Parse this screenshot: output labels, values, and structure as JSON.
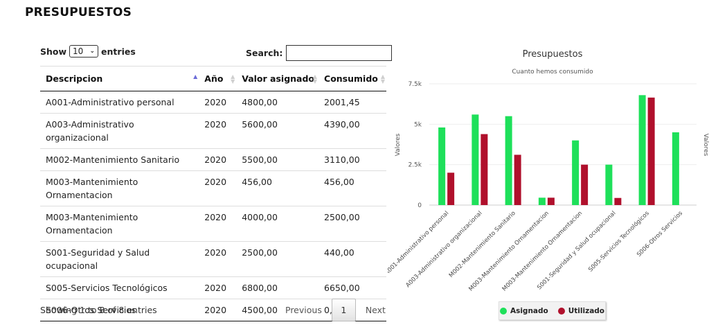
{
  "page": {
    "title": "PRESUPUESTOS"
  },
  "table": {
    "show_label": "Show",
    "length_value": "10",
    "entries_label": "entries",
    "search_label": "Search:",
    "search_value": "",
    "columns": [
      "Descripcion",
      "Año",
      "Valor asignado",
      "Consumido"
    ],
    "rows": [
      [
        "A001-Administrativo personal",
        "2020",
        "4800,00",
        "2001,45"
      ],
      [
        "A003-Administrativo organizacional",
        "2020",
        "5600,00",
        "4390,00"
      ],
      [
        "M002-Mantenimiento Sanitario",
        "2020",
        "5500,00",
        "3110,00"
      ],
      [
        "M003-Mantenimiento Ornamentacion",
        "2020",
        "456,00",
        "456,00"
      ],
      [
        "M003-Mantenimiento Ornamentacion",
        "2020",
        "4000,00",
        "2500,00"
      ],
      [
        "S001-Seguridad y Salud ocupacional",
        "2020",
        "2500,00",
        "440,00"
      ],
      [
        "S005-Servicios Tecnológicos",
        "2020",
        "6800,00",
        "6650,00"
      ],
      [
        "S006-Otros Servicios",
        "2020",
        "4500,00",
        "0,00"
      ]
    ],
    "info": "Showing 1 to 8 of 8 entries",
    "pager": {
      "previous": "Previous",
      "current": "1",
      "next": "Next"
    }
  },
  "colors": {
    "asignado": "#1ee05a",
    "utilizado": "#b0102c"
  },
  "chart_data": {
    "type": "bar",
    "title": "Presupuestos",
    "subtitle": "Cuanto hemos consumido",
    "ylabel": "Valores",
    "ylabel_right": "Valores",
    "ylim": [
      0,
      7500
    ],
    "yticks": [
      0,
      2500,
      5000,
      7500
    ],
    "ytick_labels": [
      "0",
      "2.5k",
      "5k",
      "7.5k"
    ],
    "grid": true,
    "legend_position": "bottom",
    "categories": [
      "A001-Administrativo personal",
      "A003-Administrativo organizacional",
      "M002-Mantenimiento Sanitario",
      "M003-Mantenimiento Ornamentacion",
      "M003-Mantenimiento Ornamentacion",
      "S001-Seguridad y Salud ocupacional",
      "S005-Servicios Tecnológicos",
      "S006-Otros Servicios"
    ],
    "series": [
      {
        "name": "Asignado",
        "values": [
          4800,
          5600,
          5500,
          456,
          4000,
          2500,
          6800,
          4500
        ]
      },
      {
        "name": "Utilizado",
        "values": [
          2001.45,
          4390,
          3110,
          456,
          2500,
          440,
          6650,
          0
        ]
      }
    ]
  }
}
